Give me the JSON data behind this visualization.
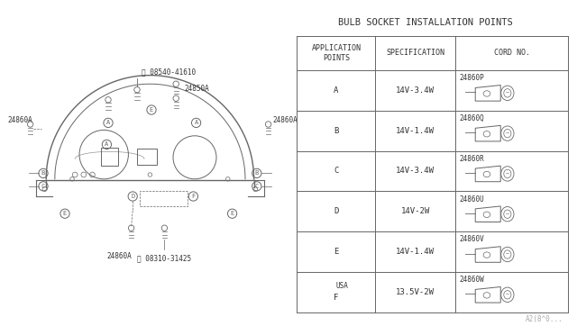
{
  "title": "BULB SOCKET INSTALLATION POINTS",
  "bg_color": "#ffffff",
  "table_header": [
    "APPLICATION\nPOINTS",
    "SPECIFICATION",
    "CORD NO."
  ],
  "table_rows": [
    [
      "A",
      "14V-3.4W",
      "24860P"
    ],
    [
      "B",
      "14V-1.4W",
      "24860Q"
    ],
    [
      "C",
      "14V-3.4W",
      "24860R"
    ],
    [
      "D",
      "14V-2W",
      "24860U"
    ],
    [
      "E",
      "14V-1.4W",
      "24860V"
    ],
    [
      "USA\nF",
      "13.5V-2W",
      "24860W"
    ]
  ],
  "diagram_color": "#666666",
  "font_color": "#333333",
  "label_fontsize": 5.5,
  "title_fontsize": 7.5,
  "table_fontsize": 6.5,
  "footnote": "A2(8^0..."
}
